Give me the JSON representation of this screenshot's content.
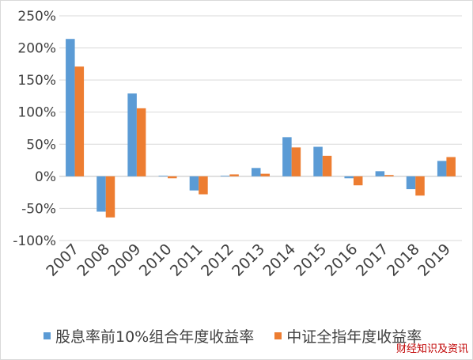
{
  "chart_data": {
    "type": "bar",
    "title": "",
    "xlabel": "",
    "ylabel": "",
    "categories": [
      "2007",
      "2008",
      "2009",
      "2010",
      "2011",
      "2012",
      "2013",
      "2014",
      "2015",
      "2016",
      "2017",
      "2018",
      "2019"
    ],
    "series": [
      {
        "name": "股息率前10%组合年度收益率",
        "color": "#5B9BD5",
        "values": [
          214,
          -55,
          129,
          1,
          -22,
          1,
          13,
          61,
          46,
          -3,
          8,
          -20,
          24
        ]
      },
      {
        "name": "中证全指年度收益率",
        "color": "#ED7D31",
        "values": [
          171,
          -64,
          106,
          -3,
          -28,
          3,
          4,
          45,
          32,
          -14,
          2,
          -30,
          30
        ]
      }
    ],
    "ylim": [
      -100,
      250
    ],
    "yticks": [
      "-100%",
      "-50%",
      "0%",
      "50%",
      "100%",
      "150%",
      "200%",
      "250%"
    ],
    "ytick_values": [
      -100,
      -50,
      0,
      50,
      100,
      150,
      200,
      250
    ],
    "grid": true,
    "legend_position": "bottom"
  },
  "watermark": "财经知识及资讯"
}
